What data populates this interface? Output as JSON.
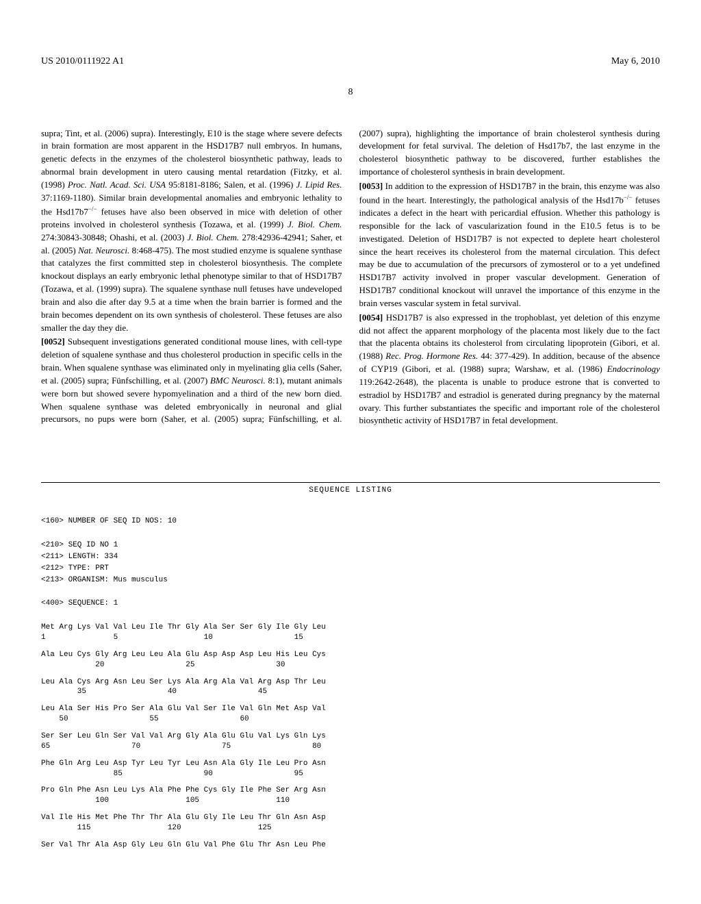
{
  "header": {
    "publication_number": "US 2010/0111922 A1",
    "date": "May 6, 2010"
  },
  "page_number": "8",
  "paragraphs": {
    "p1": "supra; Tint, et al. (2006) supra). Interestingly, E10 is the stage where severe defects in brain formation are most apparent in the HSD17B7 null embryos. In humans, genetic defects in the enzymes of the cholesterol biosynthetic pathway, leads to abnormal brain development in utero causing mental retardation (Fitzky, et al. (1998) ",
    "p1_ref1": "Proc. Natl. Acad. Sci. USA",
    "p1_cont1": " 95:8181-8186; Salen, et al. (1996) ",
    "p1_ref2": "J. Lipid Res.",
    "p1_cont2": " 37:1169-1180). Similar brain developmental anomalies and embryonic lethality to the Hsd17b7",
    "p1_sup": "−/−",
    "p1_cont3": " fetuses have also been observed in mice with deletion of other proteins involved in cholesterol synthesis (Tozawa, et al. (1999) ",
    "p1_ref3": "J. Biol. Chem.",
    "p1_cont4": " 274:30843-30848; Ohashi, et al. (2003) ",
    "p1_ref4": "J. Biol. Chem.",
    "p1_cont5": " 278:42936-42941; Saher, et al. (2005) ",
    "p1_ref5": "Nat. Neurosci.",
    "p1_cont6": " 8:468-475). The most studied enzyme is squalene synthase that catalyzes the first committed step in cholesterol biosynthesis. The complete knockout displays an early embryonic lethal phenotype similar to that of HSD17B7 (Tozawa, et al. (1999) supra). The squalene synthase null fetuses have undeveloped brain and also die after day 9.5 at a time when the brain barrier is formed and the brain becomes dependent on its own synthesis of cholesterol. These fetuses are also smaller the day they die.",
    "p2_num": "[0052]",
    "p2": " Subsequent investigations generated conditional mouse lines, with cell-type deletion of squalene synthase and thus cholesterol production in specific cells in the brain. When squalene synthase was eliminated only in myelinating glia cells (Saher, et al. (2005) supra; Fünfschilling, et al. (2007) ",
    "p2_ref1": "BMC Neurosci.",
    "p2_cont1": " 8:1), mutant animals were born but showed severe hypomyelination and a third of the new born died. When squalene synthase was deleted embryonically in neuronal and glial precursors, no pups were born (Saher, et al. (2005) supra; Fünfschilling, et al. (2007) supra), highlighting the importance of brain cholesterol synthesis during development for fetal survival. The deletion of Hsd17b7, the last enzyme in the cholesterol biosynthetic pathway to be discovered, further establishes the importance of cholesterol synthesis in brain development.",
    "p3_num": "[0053]",
    "p3": " In addition to the expression of HSD17B7 in the brain, this enzyme was also found in the heart. Interestingly, the pathological analysis of the Hsd17b",
    "p3_sup": "−/−",
    "p3_cont1": " fetuses indicates a defect in the heart with pericardial effusion. Whether this pathology is responsible for the lack of vascularization found in the E10.5 fetus is to be investigated. Deletion of HSD17B7 is not expected to deplete heart cholesterol since the heart receives its cholesterol from the maternal circulation. This defect may be due to accumulation of the precursors of zymosterol or to a yet undefined HSD17B7 activity involved in proper vascular development. Generation of HSD17B7 conditional knockout will unravel the importance of this enzyme in the brain verses vascular system in fetal survival.",
    "p4_num": "[0054]",
    "p4": " HSD17B7 is also expressed in the trophoblast, yet deletion of this enzyme did not affect the apparent morphology of the placenta most likely due to the fact that the placenta obtains its cholesterol from circulating lipoprotein (Gibori, et al. (1988) ",
    "p4_ref1": "Rec. Prog. Hormone Res.",
    "p4_cont1": " 44: 377-429). In addition, because of the absence of CYP19 (Gibori, et al. (1988) supra; Warshaw, et al. (1986) ",
    "p4_ref2": "Endocrinology",
    "p4_cont2": " 119:2642-2648), the placenta is unable to produce estrone that is converted to estradiol by HSD17B7 and estradiol is generated during pregnancy by the maternal ovary. This further substantiates the specific and important role of the cholesterol biosynthetic activity of HSD17B7 in fetal development."
  },
  "sequence": {
    "title": "SEQUENCE LISTING",
    "num_seq": "<160> NUMBER OF SEQ ID NOS: 10",
    "seq_id": "<210> SEQ ID NO 1",
    "length": "<211> LENGTH: 334",
    "type": "<212> TYPE: PRT",
    "organism": "<213> ORGANISM: Mus musculus",
    "seq400": "<400> SEQUENCE: 1",
    "rows": [
      {
        "aa": "Met Arg Lys Val Val Leu Ile Thr Gly Ala Ser Ser Gly Ile Gly Leu",
        "num": "1               5                   10                  15"
      },
      {
        "aa": "Ala Leu Cys Gly Arg Leu Leu Ala Glu Asp Asp Asp Leu His Leu Cys",
        "num": "            20                  25                  30"
      },
      {
        "aa": "Leu Ala Cys Arg Asn Leu Ser Lys Ala Arg Ala Val Arg Asp Thr Leu",
        "num": "        35                  40                  45"
      },
      {
        "aa": "Leu Ala Ser His Pro Ser Ala Glu Val Ser Ile Val Gln Met Asp Val",
        "num": "    50                  55                  60"
      },
      {
        "aa": "Ser Ser Leu Gln Ser Val Val Arg Gly Ala Glu Glu Val Lys Gln Lys",
        "num": "65                  70                  75                  80"
      },
      {
        "aa": "Phe Gln Arg Leu Asp Tyr Leu Tyr Leu Asn Ala Gly Ile Leu Pro Asn",
        "num": "                85                  90                  95"
      },
      {
        "aa": "Pro Gln Phe Asn Leu Lys Ala Phe Phe Cys Gly Ile Phe Ser Arg Asn",
        "num": "            100                 105                 110"
      },
      {
        "aa": "Val Ile His Met Phe Thr Thr Ala Glu Gly Ile Leu Thr Gln Asn Asp",
        "num": "        115                 120                 125"
      },
      {
        "aa": "Ser Val Thr Ala Asp Gly Leu Gln Glu Val Phe Glu Thr Asn Leu Phe",
        "num": ""
      }
    ]
  }
}
